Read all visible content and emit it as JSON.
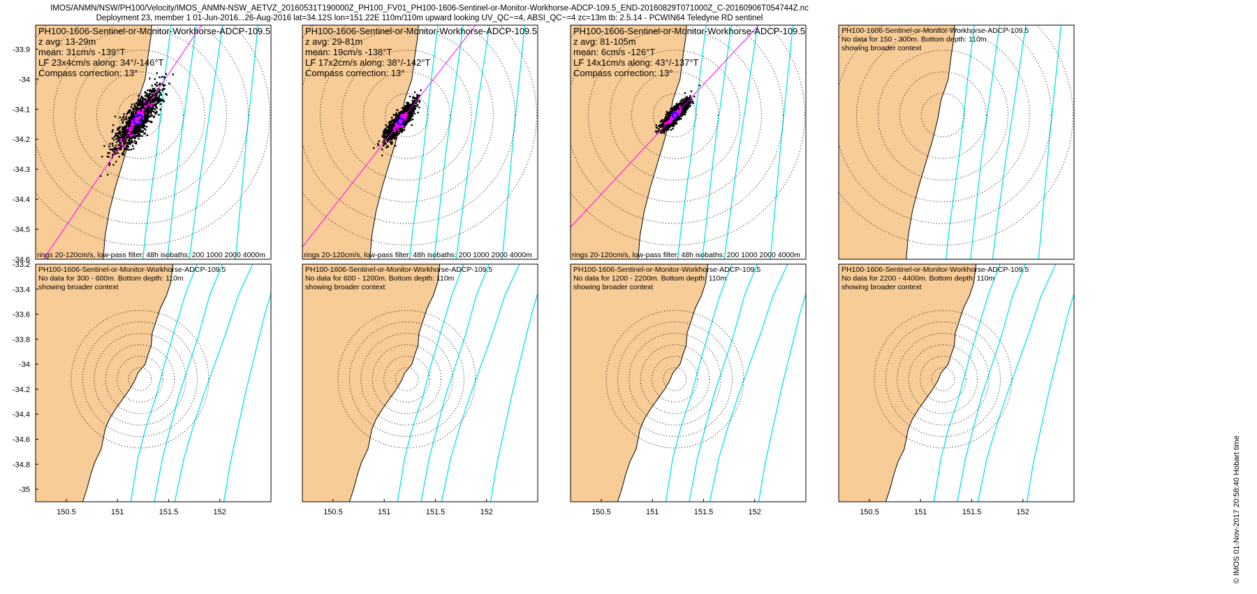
{
  "header": {
    "line1": "IMOS/ANMN/NSW/PH100/Velocity/IMOS_ANMN-NSW_AETVZ_20160531T190000Z_PH100_FV01_PH100-1606-Sentinel-or-Monitor-Workhorse-ADCP-109.5_END-20160829T071000Z_C-20160906T054744Z.nc",
    "line2": "Deployment 23, member 1 01-Jun-2016...26-Aug-2016 lat=34.12S lon=151.22E 110m/110m upward looking UV_QC~=4, ABSI_QC~=4 zc=13m tb: 2.5.14 - PCWIN64 Teledyne RD sentinel"
  },
  "stamp": "© IMOS 01-Nov-2017 20:58:40 Hobart time",
  "colors": {
    "land": "#f8cc96",
    "isobath": "#00e4e8",
    "axis_line": "#ff00ff",
    "fit": "#0000ff",
    "lowpass": "#ff00ff",
    "raw": "#000000",
    "rings": "#000000"
  },
  "chart_data": {
    "type": "scatter",
    "axes": {
      "top_xlim": [
        150.2,
        152.5
      ],
      "top_ylim": [
        -34.6,
        -33.82
      ],
      "top_yticks": [
        -33.9,
        -34,
        -34.1,
        -34.2,
        -34.3,
        -34.4,
        -34.5,
        -34.6
      ],
      "top_ytick_labels": [
        "-33.9",
        "-34",
        "-34.1",
        "-34.2",
        "-34.3",
        "-34.4",
        "-34.5",
        "-34.6"
      ],
      "bottom_xlim": [
        150.2,
        152.5
      ],
      "bottom_ylim": [
        -35.1,
        -33.2
      ],
      "bottom_yticks": [
        -33.2,
        -33.4,
        -33.6,
        -33.8,
        -34,
        -34.2,
        -34.4,
        -34.6,
        -34.8,
        -35
      ],
      "bottom_ytick_labels": [
        "-33.2",
        "-33.4",
        "-33.6",
        "-33.8",
        "-34",
        "-34.2",
        "-34.4",
        "-34.6",
        "-34.8",
        "-35"
      ],
      "xticks": [
        150.5,
        151,
        151.5,
        152
      ],
      "xtick_labels": [
        "150.5",
        "151",
        "151.5",
        "152"
      ]
    },
    "mooring": {
      "lon": 151.22,
      "lat": -34.12
    },
    "panels": [
      {
        "row": "top",
        "lines": [
          "PH100-1606-Sentinel-or-Monitor-Workhorse-ADCP-109.5",
          "z avg: 13-29m",
          "mean: 31cm/s -139°T",
          "LF 23x4cm/s along: 34°/-146°T",
          "Compass correction: 13°"
        ],
        "footer": "rings 20-120cm/s, low-pass filter: 48h isobaths: 200 1000 2000 4000m",
        "has_data": true,
        "major_axis_deg": 34,
        "spread": [
          0.32,
          0.09
        ],
        "mean_offset": [
          -0.01,
          -0.02
        ]
      },
      {
        "row": "top",
        "lines": [
          "PH100-1606-Sentinel-or-Monitor-Workhorse-ADCP-109.5",
          "z avg: 29-81m",
          "mean: 19cm/s -138°T",
          "LF 17x2cm/s along: 38°/-142°T",
          "Compass correction: 13°"
        ],
        "footer": "rings 20-120cm/s, low-pass filter: 48h isobaths: 200 1000 2000 4000m",
        "has_data": true,
        "major_axis_deg": 38,
        "spread": [
          0.2,
          0.055
        ],
        "mean_offset": [
          -0.03,
          -0.03
        ]
      },
      {
        "row": "top",
        "lines": [
          "PH100-1606-Sentinel-or-Monitor-Workhorse-ADCP-109.5",
          "z avg: 81-105m",
          "mean: 6cm/s -126°T",
          "LF 14x1cm/s along: 43°/-137°T",
          "Compass correction: 13°"
        ],
        "footer": "rings 20-120cm/s, low-pass filter: 48h isobaths: 200 1000 2000 4000m",
        "has_data": true,
        "major_axis_deg": 43,
        "spread": [
          0.16,
          0.045
        ],
        "mean_offset": [
          0.0,
          0.0
        ]
      },
      {
        "row": "top",
        "lines": [
          "PH100-1606-Sentinel-or-Monitor-Workhorse-ADCP-109.5",
          "No data for 150 - 300m. Bottom depth: 110m",
          "showing broader context"
        ],
        "footer": "",
        "has_data": false
      },
      {
        "row": "bottom",
        "lines": [
          "PH100-1606-Sentinel-or-Monitor-Workhorse-ADCP-109.5",
          "No data for 300 - 600m. Bottom depth: 110m",
          "showing broader context"
        ],
        "footer": "",
        "has_data": false
      },
      {
        "row": "bottom",
        "lines": [
          "PH100-1606-Sentinel-or-Monitor-Workhorse-ADCP-109.5",
          "No data for 600 - 1200m. Bottom depth: 110m",
          "showing broader context"
        ],
        "footer": "",
        "has_data": false
      },
      {
        "row": "bottom",
        "lines": [
          "PH100-1606-Sentinel-or-Monitor-Workhorse-ADCP-109.5",
          "No data for 1200 - 2200m. Bottom depth: 110m",
          "showing broader context"
        ],
        "footer": "",
        "has_data": false
      },
      {
        "row": "bottom",
        "lines": [
          "PH100-1606-Sentinel-or-Monitor-Workhorse-ADCP-109.5",
          "No data for 2200 - 4400m. Bottom depth: 110m",
          "showing broader context"
        ],
        "footer": "",
        "has_data": false
      }
    ],
    "coastline": [
      [
        151.55,
        -33.15
      ],
      [
        151.52,
        -33.35
      ],
      [
        151.48,
        -33.45
      ],
      [
        151.42,
        -33.55
      ],
      [
        151.38,
        -33.65
      ],
      [
        151.34,
        -33.75
      ],
      [
        151.33,
        -33.85
      ],
      [
        151.3,
        -33.92
      ],
      [
        151.27,
        -34.0
      ],
      [
        151.2,
        -34.07
      ],
      [
        151.17,
        -34.13
      ],
      [
        151.12,
        -34.2
      ],
      [
        151.05,
        -34.28
      ],
      [
        150.98,
        -34.36
      ],
      [
        150.92,
        -34.44
      ],
      [
        150.88,
        -34.52
      ],
      [
        150.86,
        -34.6
      ],
      [
        150.84,
        -34.68
      ],
      [
        150.78,
        -34.78
      ],
      [
        150.74,
        -34.88
      ],
      [
        150.7,
        -35.0
      ],
      [
        150.66,
        -35.1
      ]
    ],
    "isobaths": [
      {
        "depth": 200,
        "points": [
          [
            151.8,
            -33.15
          ],
          [
            151.66,
            -33.45
          ],
          [
            151.55,
            -33.75
          ],
          [
            151.46,
            -34.0
          ],
          [
            151.38,
            -34.25
          ],
          [
            151.28,
            -34.5
          ],
          [
            151.2,
            -34.75
          ],
          [
            151.13,
            -35.1
          ]
        ]
      },
      {
        "depth": 1000,
        "points": [
          [
            152.05,
            -33.15
          ],
          [
            151.9,
            -33.45
          ],
          [
            151.8,
            -33.75
          ],
          [
            151.7,
            -34.0
          ],
          [
            151.6,
            -34.25
          ],
          [
            151.52,
            -34.5
          ],
          [
            151.44,
            -34.75
          ],
          [
            151.36,
            -35.1
          ]
        ]
      },
      {
        "depth": 2000,
        "points": [
          [
            152.35,
            -33.15
          ],
          [
            152.18,
            -33.45
          ],
          [
            152.06,
            -33.75
          ],
          [
            151.95,
            -34.0
          ],
          [
            151.84,
            -34.25
          ],
          [
            151.74,
            -34.5
          ],
          [
            151.65,
            -34.75
          ],
          [
            151.56,
            -35.1
          ]
        ]
      },
      {
        "depth": 4000,
        "points": [
          [
            152.55,
            -33.3
          ],
          [
            152.44,
            -33.6
          ],
          [
            152.35,
            -33.9
          ],
          [
            152.26,
            -34.2
          ],
          [
            152.18,
            -34.5
          ],
          [
            152.1,
            -34.8
          ],
          [
            152.04,
            -35.1
          ]
        ]
      }
    ],
    "rings_cm_s": [
      20,
      40,
      60,
      80,
      100,
      120
    ],
    "lowpass_points_per_panel": 60,
    "raw_points_per_panel": 1400
  }
}
